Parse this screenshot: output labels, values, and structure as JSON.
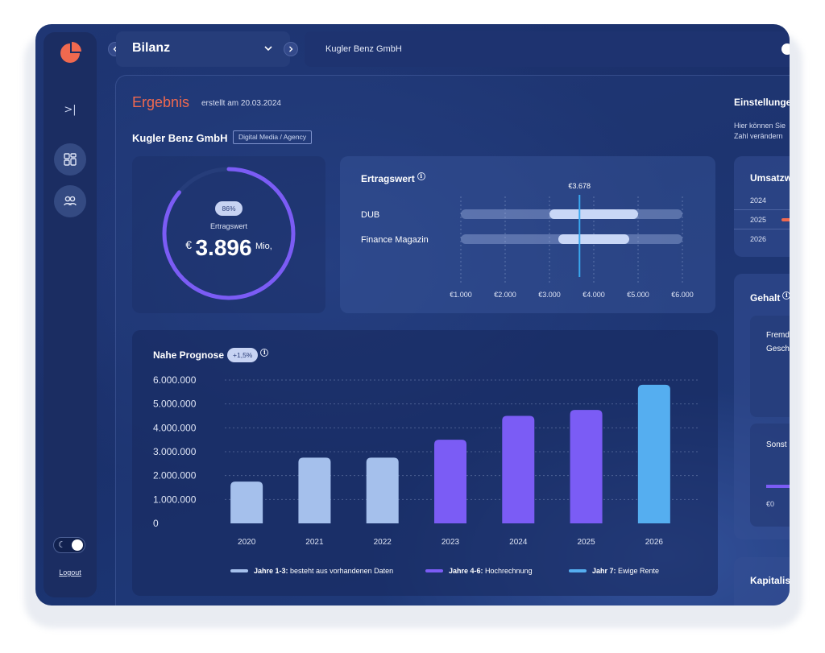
{
  "colors": {
    "accent": "#f0694f",
    "violet": "#7b5cf5",
    "light_blue": "#a5c0ec",
    "sky": "#55aef0",
    "marker": "#3aa8f0"
  },
  "sidebar": {
    "collapse_label": ">|",
    "buttons": [
      {
        "icon": "dashboard-grid-icon"
      },
      {
        "icon": "users-icon"
      }
    ],
    "logout_label": "Logout"
  },
  "topbar": {
    "selected_view": "Bilanz",
    "company": "Kugler Benz GmbH"
  },
  "header": {
    "title": "Ergebnis",
    "created": "erstellt am 20.03.2024",
    "company": "Kugler Benz GmbH",
    "industry": "Digital Media / Agency"
  },
  "gauge": {
    "percent_label": "86%",
    "percent": 0.86,
    "label": "Ertragswert",
    "currency": "€",
    "value": "3.896",
    "unit": "Mio,"
  },
  "ertragswert": {
    "title": "Ertragswert",
    "info": "i"
  },
  "prognose": {
    "title": "Nahe Prognose",
    "badge": "+1,5%",
    "info": "i"
  },
  "settings": {
    "title": "Einstellunge",
    "text_line1": "Hier können Sie",
    "text_line2": "Zahl verändern"
  },
  "umsatz": {
    "title": "Umsatzw",
    "years": [
      "2024",
      "2025",
      "2026"
    ]
  },
  "gehalt": {
    "title": "Gehalt",
    "info": "i",
    "card1_line1": "Fremd",
    "card1_line2": "Gesch",
    "card2_title": "Sonst",
    "card2_value": "€0"
  },
  "kapital": {
    "title": "Kapitalis"
  },
  "chart_data": [
    {
      "type": "bar",
      "title": "Ertragswert",
      "orientation": "horizontal-range",
      "categories": [
        "DUB",
        "Finance Magazin"
      ],
      "ranges": [
        [
          3000,
          5000
        ],
        [
          3200,
          4800
        ]
      ],
      "marker": {
        "label": "€3.678",
        "value": 3678
      },
      "xlim": [
        1000,
        6000
      ],
      "xticks": [
        "€1.000",
        "€2.000",
        "€3.000",
        "€4.000",
        "€5.000",
        "€6.000"
      ],
      "grid": true
    },
    {
      "type": "bar",
      "title": "Nahe Prognose",
      "categories": [
        "2020",
        "2021",
        "2022",
        "2023",
        "2024",
        "2025",
        "2026"
      ],
      "values": [
        1750000,
        2750000,
        2750000,
        3500000,
        4500000,
        4750000,
        5800000
      ],
      "ylim": [
        0,
        6000000
      ],
      "yticks": [
        "0",
        "1.000.000",
        "2.000.000",
        "3.000.000",
        "4.000.000",
        "5.000.000",
        "6.000.000"
      ],
      "grid": true,
      "legend": [
        {
          "bold": "Jahre 1-3:",
          "text": " besteht aus vorhandenen Daten",
          "color": "#a5c0ec"
        },
        {
          "bold": "Jahre 4-6:",
          "text": " Hochrechnung",
          "color": "#7b5cf5"
        },
        {
          "bold": "Jahr 7:",
          "text": " Ewige Rente",
          "color": "#55aef0"
        }
      ],
      "legend_position": "bottom"
    }
  ]
}
